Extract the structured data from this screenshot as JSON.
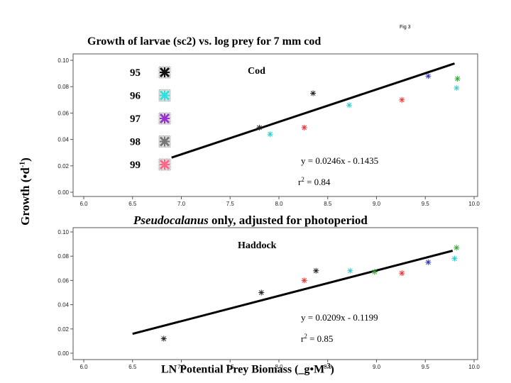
{
  "title": "Growth of larvae (sc2) vs. log prey for 7 mm cod",
  "fig_label": "Fig 3",
  "ylabel": "Growth (•d",
  "ylabel_sup": "-1",
  "ylabel_end": ")",
  "subtitle_italic": "Pseudocalanus",
  "subtitle_rest": " only, adjusted for photoperiod",
  "xlabel": "LN  Potential Prey Biomass (_g•M",
  "xlabel_sup": "-3",
  "xlabel_end": ")",
  "legend": [
    {
      "label": "95",
      "color": "#111111"
    },
    {
      "label": "96",
      "color": "#33e0e0"
    },
    {
      "label": "97",
      "color": "#9933cc"
    },
    {
      "label": "98",
      "color": "#777777"
    },
    {
      "label": "99",
      "color": "#ff6688"
    }
  ],
  "chart_data": [
    {
      "type": "scatter",
      "panel_label": "Cod",
      "xlim": [
        6.0,
        10.0
      ],
      "ylim": [
        0.0,
        0.1
      ],
      "x_ticks": [
        "6.0",
        "6.5",
        "7.0",
        "7.5",
        "8.0",
        "8.5",
        "9.0",
        "9.5",
        "10.0"
      ],
      "y_ticks": [
        "0.00",
        "0.02",
        "0.04",
        "0.06",
        "0.08",
        "0.10"
      ],
      "equation": "y = 0.0246x - 0.1435",
      "r2_label": "r",
      "r2_sup": "2",
      "r2_value": " = 0.84",
      "fit_line": {
        "slope": 0.0246,
        "intercept": -0.1435,
        "x_range": [
          6.9,
          9.8
        ]
      },
      "points": [
        {
          "year": "95",
          "x": 7.8,
          "y": 0.049,
          "color": "#222222"
        },
        {
          "year": "95",
          "x": 8.35,
          "y": 0.075,
          "color": "#222222"
        },
        {
          "year": "96",
          "x": 7.91,
          "y": 0.044,
          "color": "#33cccc"
        },
        {
          "year": "96",
          "x": 8.72,
          "y": 0.066,
          "color": "#33cccc"
        },
        {
          "year": "96",
          "x": 9.82,
          "y": 0.079,
          "color": "#33cccc"
        },
        {
          "year": "97",
          "x": 9.53,
          "y": 0.088,
          "color": "#3333cc"
        },
        {
          "year": "98",
          "x": 9.83,
          "y": 0.086,
          "color": "#33aa33"
        },
        {
          "year": "99",
          "x": 8.26,
          "y": 0.049,
          "color": "#ee3333"
        },
        {
          "year": "99",
          "x": 9.26,
          "y": 0.07,
          "color": "#ee3333"
        }
      ]
    },
    {
      "type": "scatter",
      "panel_label": "Haddock",
      "xlim": [
        6.0,
        10.0
      ],
      "ylim": [
        0.0,
        0.1
      ],
      "x_ticks": [
        "6.0",
        "6.5",
        "7.0",
        "7.5",
        "8.0",
        "8.5",
        "9.0",
        "9.5",
        "10.0"
      ],
      "y_ticks": [
        "0.00",
        "0.02",
        "0.04",
        "0.06",
        "0.08",
        "0.10"
      ],
      "equation": "y = 0.0209x - 0.1199",
      "r2_label": "r",
      "r2_sup": "2",
      "r2_value": " = 0.85",
      "fit_line": {
        "slope": 0.0209,
        "intercept": -0.1199,
        "x_range": [
          6.5,
          9.78
        ]
      },
      "points": [
        {
          "year": "95",
          "x": 6.82,
          "y": 0.012,
          "color": "#222222"
        },
        {
          "year": "95",
          "x": 7.82,
          "y": 0.05,
          "color": "#222222"
        },
        {
          "year": "95",
          "x": 8.38,
          "y": 0.068,
          "color": "#222222"
        },
        {
          "year": "96",
          "x": 8.73,
          "y": 0.068,
          "color": "#33cccc"
        },
        {
          "year": "96",
          "x": 9.8,
          "y": 0.078,
          "color": "#33cccc"
        },
        {
          "year": "97",
          "x": 9.53,
          "y": 0.075,
          "color": "#3333cc"
        },
        {
          "year": "98",
          "x": 8.98,
          "y": 0.067,
          "color": "#33aa33"
        },
        {
          "year": "98",
          "x": 9.82,
          "y": 0.087,
          "color": "#33aa33"
        },
        {
          "year": "99",
          "x": 8.26,
          "y": 0.06,
          "color": "#ee3333"
        },
        {
          "year": "99",
          "x": 9.26,
          "y": 0.066,
          "color": "#ee3333"
        }
      ]
    }
  ]
}
